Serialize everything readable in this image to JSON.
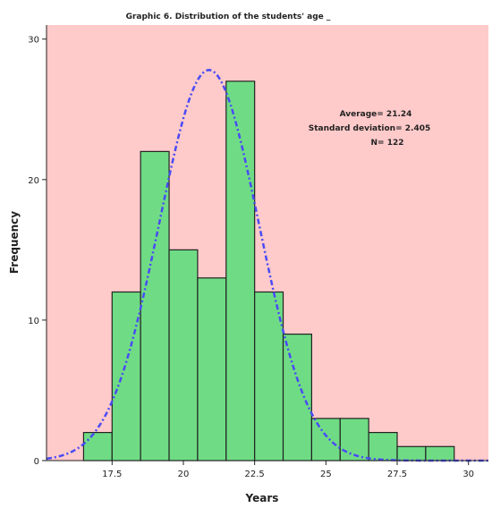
{
  "chart_data": {
    "type": "bar",
    "title": "Graphic 6. Distribution of the students' age _",
    "xlabel": "Years",
    "ylabel": "Frequency",
    "xlim": [
      15.2,
      30.7
    ],
    "ylim": [
      0,
      31
    ],
    "x_ticks": [
      17.5,
      20,
      22.5,
      25,
      27.5,
      30
    ],
    "x_tick_labels": [
      "17.5",
      "20",
      "22.5",
      "25",
      "27.5",
      "30"
    ],
    "y_ticks": [
      0,
      10,
      20,
      30
    ],
    "y_tick_labels": [
      "0",
      "10",
      "20",
      "30"
    ],
    "bin_width": 1,
    "bins": [
      {
        "start": 16.5,
        "end": 17.5,
        "value": 2
      },
      {
        "start": 17.5,
        "end": 18.5,
        "value": 12
      },
      {
        "start": 18.5,
        "end": 19.5,
        "value": 22
      },
      {
        "start": 19.5,
        "end": 20.5,
        "value": 15
      },
      {
        "start": 20.5,
        "end": 21.5,
        "value": 13
      },
      {
        "start": 21.5,
        "end": 22.5,
        "value": 27
      },
      {
        "start": 22.5,
        "end": 23.5,
        "value": 12
      },
      {
        "start": 23.5,
        "end": 24.5,
        "value": 9
      },
      {
        "start": 24.5,
        "end": 25.5,
        "value": 3
      },
      {
        "start": 25.5,
        "end": 26.5,
        "value": 3
      },
      {
        "start": 26.5,
        "end": 27.5,
        "value": 2
      },
      {
        "start": 27.5,
        "end": 28.5,
        "value": 1
      },
      {
        "start": 28.5,
        "end": 29.5,
        "value": 1
      }
    ],
    "normal_curve": {
      "mean": 20.9,
      "sd": 1.75,
      "peak": 27.8
    },
    "stats": {
      "average_label": "Average=  21.24",
      "sd_label": "Standard deviation= 2.405",
      "n_label": "N= 122"
    },
    "grid": false,
    "colors": {
      "plot_background": "#ffcaca",
      "bar_fill": "#6fdc85",
      "bar_stroke": "#222222",
      "curve": "#4a4af5",
      "axis": "#222222"
    }
  }
}
